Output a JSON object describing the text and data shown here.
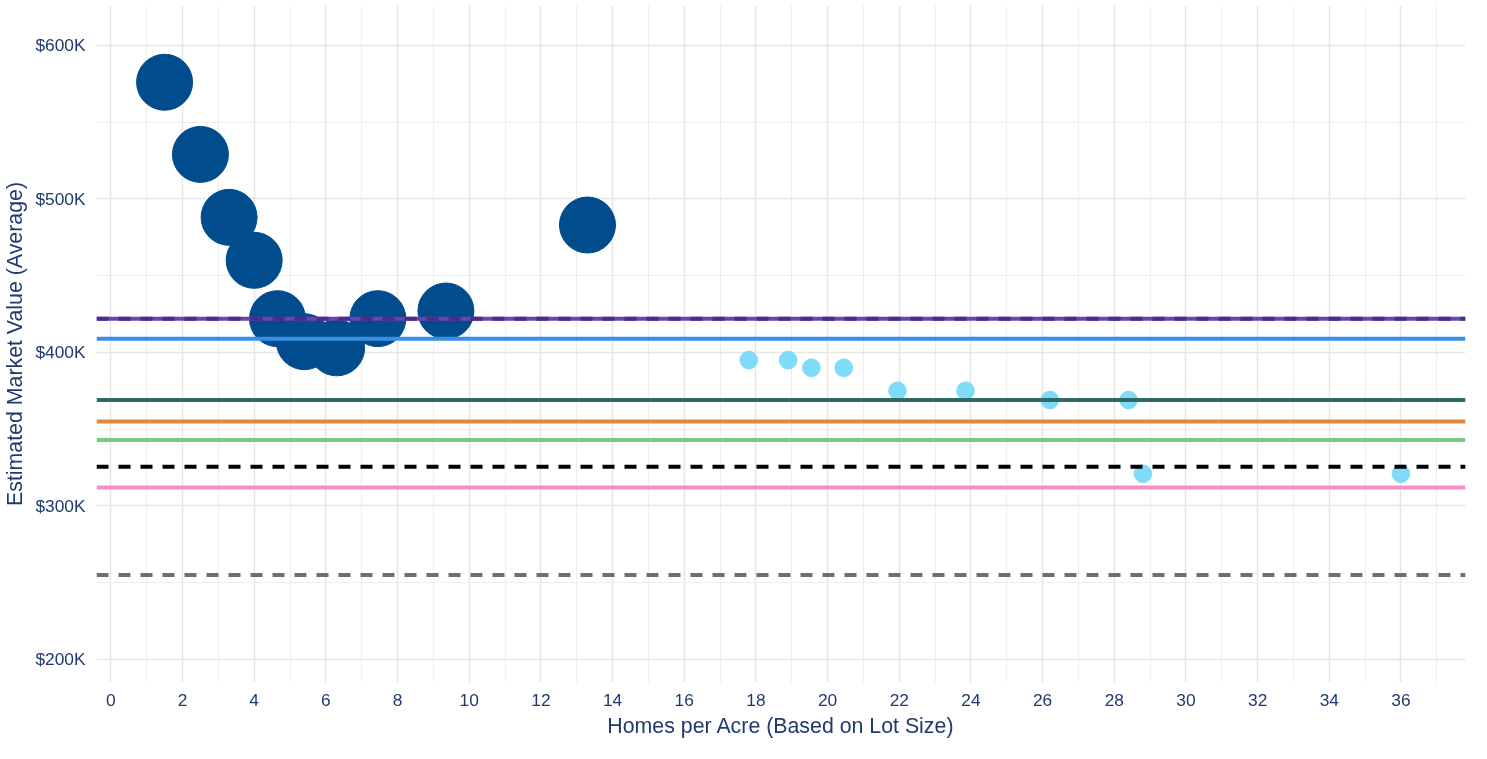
{
  "chart_data": {
    "type": "bubble",
    "xlabel": "Homes per Acre (Based on Lot Size)",
    "ylabel": "Estimated Market Value (Average)",
    "xlim": [
      -0.4,
      37.8
    ],
    "ylim": [
      185000,
      626000
    ],
    "xticks": [
      0,
      2,
      4,
      6,
      8,
      10,
      12,
      14,
      16,
      18,
      20,
      22,
      24,
      26,
      28,
      30,
      32,
      34,
      36
    ],
    "yticks": [
      {
        "value": 200000,
        "label": "$200K"
      },
      {
        "value": 300000,
        "label": "$300K"
      },
      {
        "value": 400000,
        "label": "$400K"
      },
      {
        "value": 500000,
        "label": "$500K"
      },
      {
        "value": 600000,
        "label": "$600K"
      }
    ],
    "grid": true,
    "series": [
      {
        "color": "#004c8c",
        "x": [
          1.5,
          2.5,
          3.3,
          4.0,
          4.65,
          5.4,
          6.3,
          7.45,
          9.35,
          13.3
        ],
        "values": [
          576000,
          529000,
          488000,
          460000,
          422000,
          407000,
          403000,
          422000,
          427000,
          483000
        ],
        "sizes": [
          1,
          1,
          1,
          1,
          1,
          1,
          1,
          1,
          1,
          1
        ]
      },
      {
        "color": "#7fdcf8",
        "x": [
          17.8,
          18.9,
          19.55,
          20.45,
          21.95,
          23.85,
          26.2,
          28.4,
          28.8,
          36.0
        ],
        "values": [
          395000,
          395000,
          390000,
          390000,
          375000,
          375000,
          369000,
          369000,
          321000,
          321000
        ],
        "sizes": [
          0.1,
          0.1,
          0.1,
          0.1,
          0.1,
          0.1,
          0.1,
          0.1,
          0.1,
          0.1
        ]
      }
    ],
    "ref_lines": [
      {
        "axis": "y",
        "value": 422000,
        "color": "#6b44a8",
        "line_style": "solid"
      },
      {
        "axis": "y",
        "value": 422000,
        "color": "#4a2d8a",
        "line_style": "dashed"
      },
      {
        "axis": "y",
        "value": 409000,
        "color": "#3a8ee6",
        "line_style": "solid"
      },
      {
        "axis": "y",
        "value": 369000,
        "color": "#2e6b68",
        "line_style": "solid"
      },
      {
        "axis": "y",
        "value": 355000,
        "color": "#e08a3c",
        "line_style": "solid"
      },
      {
        "axis": "y",
        "value": 343000,
        "color": "#7fc97f",
        "line_style": "solid"
      },
      {
        "axis": "y",
        "value": 325500,
        "color": "#000000",
        "line_style": "dashed"
      },
      {
        "axis": "y",
        "value": 312000,
        "color": "#f78fc4",
        "line_style": "solid"
      },
      {
        "axis": "y",
        "value": 255000,
        "color": "#6b6f73",
        "line_style": "dashed"
      }
    ]
  }
}
